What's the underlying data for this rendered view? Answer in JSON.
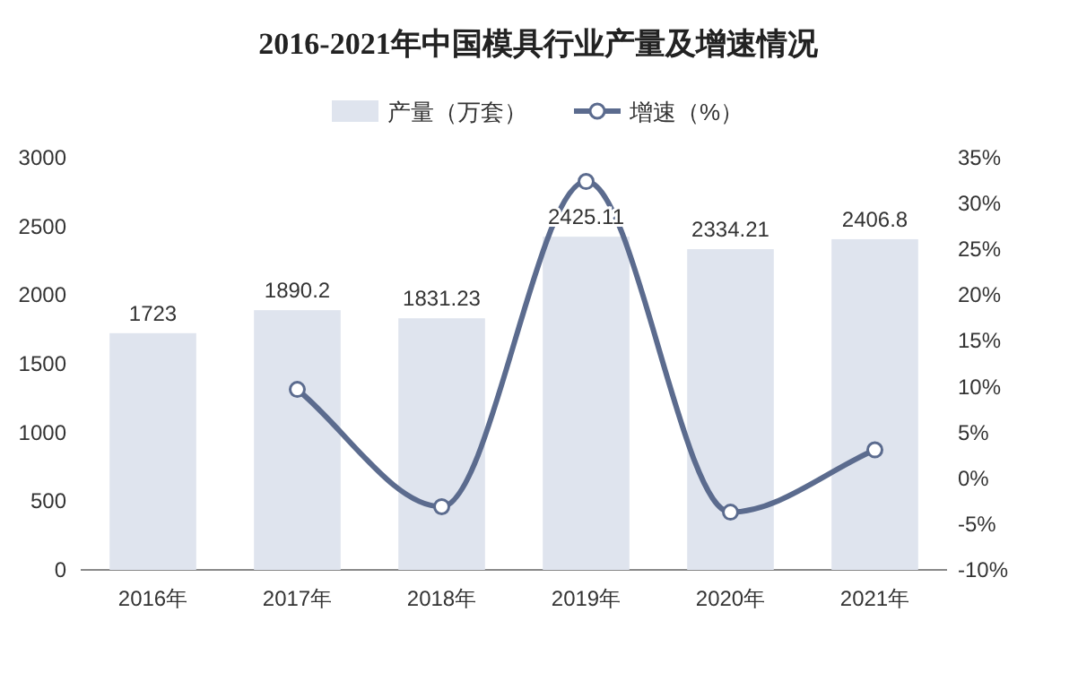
{
  "chart_data": {
    "type": "bar",
    "title": "2016-2021年中国模具行业产量及增速情况",
    "categories": [
      "2016年",
      "2017年",
      "2018年",
      "2019年",
      "2020年",
      "2021年"
    ],
    "series": [
      {
        "name": "产量（万套）",
        "color": "#dfe4ee",
        "values": [
          1723,
          1890.2,
          1831.23,
          2425.11,
          2334.21,
          2406.8
        ],
        "value_labels": [
          "1723",
          "1890.2",
          "1831.23",
          "2425.11",
          "2334.21",
          "2406.8"
        ]
      },
      {
        "name": "增速（%）",
        "type": "line",
        "axis": "y2",
        "color": "#5b6b8e",
        "values": [
          null,
          9.7,
          -3.1,
          32.4,
          -3.7,
          3.1
        ]
      }
    ],
    "ylim": [
      0,
      3000
    ],
    "yticks": [
      0,
      500,
      1000,
      1500,
      2000,
      2500,
      3000
    ],
    "y2lim": [
      -10,
      35
    ],
    "y2ticks": [
      {
        "value": -10,
        "label": "-10%"
      },
      {
        "value": -5,
        "label": "-5%"
      },
      {
        "value": 0,
        "label": "0%"
      },
      {
        "value": 5,
        "label": "5%"
      },
      {
        "value": 10,
        "label": "10%"
      },
      {
        "value": 15,
        "label": "15%"
      },
      {
        "value": 20,
        "label": "20%"
      },
      {
        "value": 25,
        "label": "25%"
      },
      {
        "value": 30,
        "label": "30%"
      },
      {
        "value": 35,
        "label": "35%"
      }
    ],
    "marker": "circle",
    "legend": "top",
    "grid": false
  }
}
